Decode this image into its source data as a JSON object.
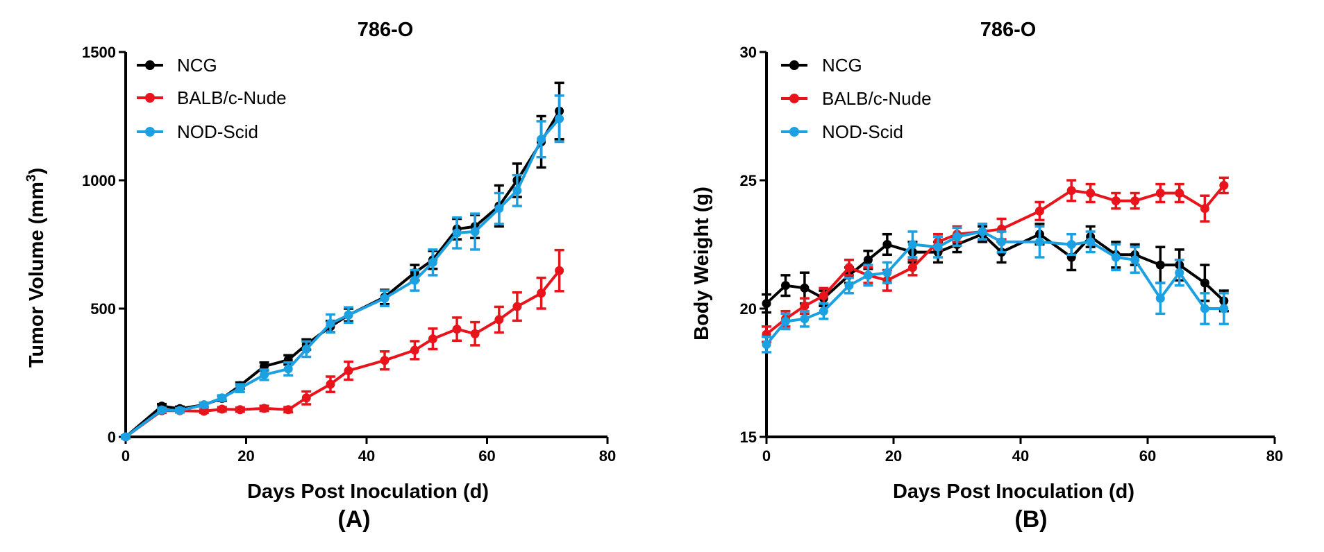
{
  "chart_data": [
    {
      "type": "line",
      "panel_label": "(A)",
      "title": "786-O",
      "xlabel": "Days Post Inoculation (d)",
      "ylabel": "Tumor Volume (mm",
      "ylabel_sup": "3",
      "ylabel_end": ")",
      "xlim": [
        0,
        80
      ],
      "ylim": [
        0,
        1500
      ],
      "xticks": [
        0,
        20,
        40,
        60,
        80
      ],
      "yticks": [
        0,
        500,
        1000,
        1500
      ],
      "xtick_labels": [
        "0",
        "20",
        "40",
        "60",
        "80"
      ],
      "ytick_labels": [
        "0",
        "500",
        "1000",
        "1500"
      ],
      "legend_position": "top-left",
      "series": [
        {
          "name": "NCG",
          "color": "#000000",
          "x": [
            0,
            6,
            9,
            13,
            16,
            19,
            23,
            27,
            30,
            34,
            37,
            43,
            48,
            51,
            55,
            58,
            62,
            65,
            69,
            72
          ],
          "y": [
            0,
            120,
            110,
            125,
            150,
            200,
            275,
            300,
            360,
            430,
            475,
            545,
            640,
            690,
            810,
            820,
            900,
            1000,
            1150,
            1270
          ],
          "err": [
            5,
            8,
            8,
            8,
            10,
            12,
            15,
            18,
            20,
            22,
            25,
            28,
            30,
            35,
            40,
            45,
            80,
            65,
            100,
            110
          ]
        },
        {
          "name": "BALB/c-Nude",
          "color": "#e8131b",
          "x": [
            0,
            6,
            9,
            13,
            16,
            19,
            23,
            27,
            30,
            34,
            37,
            43,
            48,
            51,
            55,
            58,
            62,
            65,
            69,
            72
          ],
          "y": [
            0,
            102,
            102,
            100,
            108,
            106,
            111,
            106,
            152,
            205,
            258,
            298,
            338,
            382,
            420,
            402,
            457,
            508,
            560,
            648
          ],
          "err": [
            5,
            8,
            6,
            6,
            8,
            8,
            10,
            10,
            25,
            30,
            35,
            35,
            35,
            40,
            45,
            45,
            50,
            55,
            60,
            80
          ]
        },
        {
          "name": "NOD-Scid",
          "color": "#1ba1e2",
          "x": [
            0,
            6,
            9,
            13,
            16,
            19,
            23,
            27,
            30,
            34,
            37,
            43,
            48,
            51,
            55,
            58,
            62,
            65,
            69,
            72
          ],
          "y": [
            0,
            105,
            103,
            125,
            152,
            190,
            242,
            265,
            342,
            442,
            475,
            540,
            610,
            680,
            795,
            800,
            890,
            960,
            1160,
            1240
          ],
          "err": [
            5,
            8,
            8,
            8,
            10,
            15,
            20,
            25,
            30,
            35,
            30,
            30,
            40,
            50,
            60,
            70,
            60,
            60,
            70,
            90
          ]
        }
      ]
    },
    {
      "type": "line",
      "panel_label": "(B)",
      "title": "786-O",
      "xlabel": "Days Post Inoculation (d)",
      "ylabel": "Body Weight (g)",
      "xlim": [
        0,
        80
      ],
      "ylim": [
        15,
        30
      ],
      "xticks": [
        0,
        20,
        40,
        60,
        80
      ],
      "yticks": [
        15,
        20,
        25,
        30
      ],
      "xtick_labels": [
        "0",
        "20",
        "40",
        "60",
        "80"
      ],
      "ytick_labels": [
        "15",
        "20",
        "25",
        "30"
      ],
      "legend_position": "top-left",
      "series": [
        {
          "name": "NCG",
          "color": "#000000",
          "x": [
            0,
            3,
            6,
            9,
            13,
            16,
            19,
            23,
            27,
            30,
            34,
            37,
            43,
            48,
            51,
            55,
            58,
            62,
            65,
            69,
            72
          ],
          "y": [
            20.2,
            20.9,
            20.8,
            20.4,
            21.3,
            21.9,
            22.5,
            22.2,
            22.2,
            22.5,
            22.9,
            22.2,
            22.9,
            22.0,
            22.8,
            22.1,
            22.1,
            21.7,
            21.7,
            21.0,
            20.3
          ],
          "err": [
            0.35,
            0.4,
            0.6,
            0.3,
            0.3,
            0.35,
            0.4,
            0.4,
            0.4,
            0.3,
            0.3,
            0.4,
            0.4,
            0.5,
            0.4,
            0.5,
            0.4,
            0.7,
            0.6,
            0.7,
            0.4
          ]
        },
        {
          "name": "BALB/c-Nude",
          "color": "#e8131b",
          "x": [
            0,
            3,
            6,
            9,
            13,
            16,
            19,
            23,
            27,
            30,
            34,
            37,
            43,
            48,
            51,
            55,
            58,
            62,
            65,
            69,
            72
          ],
          "y": [
            19.0,
            19.6,
            20.1,
            20.5,
            21.6,
            21.3,
            21.1,
            21.6,
            22.6,
            22.9,
            23.0,
            23.1,
            23.8,
            24.6,
            24.5,
            24.2,
            24.2,
            24.5,
            24.5,
            23.9,
            24.8
          ],
          "err": [
            0.3,
            0.3,
            0.3,
            0.3,
            0.3,
            0.3,
            0.4,
            0.3,
            0.3,
            0.3,
            0.3,
            0.4,
            0.35,
            0.4,
            0.35,
            0.3,
            0.3,
            0.35,
            0.35,
            0.5,
            0.3
          ]
        },
        {
          "name": "NOD-Scid",
          "color": "#1ba1e2",
          "x": [
            0,
            3,
            6,
            9,
            13,
            16,
            19,
            23,
            27,
            30,
            34,
            37,
            43,
            48,
            51,
            55,
            58,
            62,
            65,
            69,
            72
          ],
          "y": [
            18.6,
            19.5,
            19.6,
            19.9,
            20.9,
            21.3,
            21.4,
            22.5,
            22.4,
            22.8,
            23.0,
            22.6,
            22.6,
            22.5,
            22.6,
            22.0,
            21.9,
            20.4,
            21.4,
            20.0,
            20.0
          ],
          "err": [
            0.3,
            0.3,
            0.3,
            0.3,
            0.3,
            0.4,
            0.4,
            0.5,
            0.4,
            0.35,
            0.3,
            0.4,
            0.6,
            0.4,
            0.4,
            0.5,
            0.5,
            0.6,
            0.5,
            0.6,
            0.6
          ]
        }
      ]
    }
  ]
}
